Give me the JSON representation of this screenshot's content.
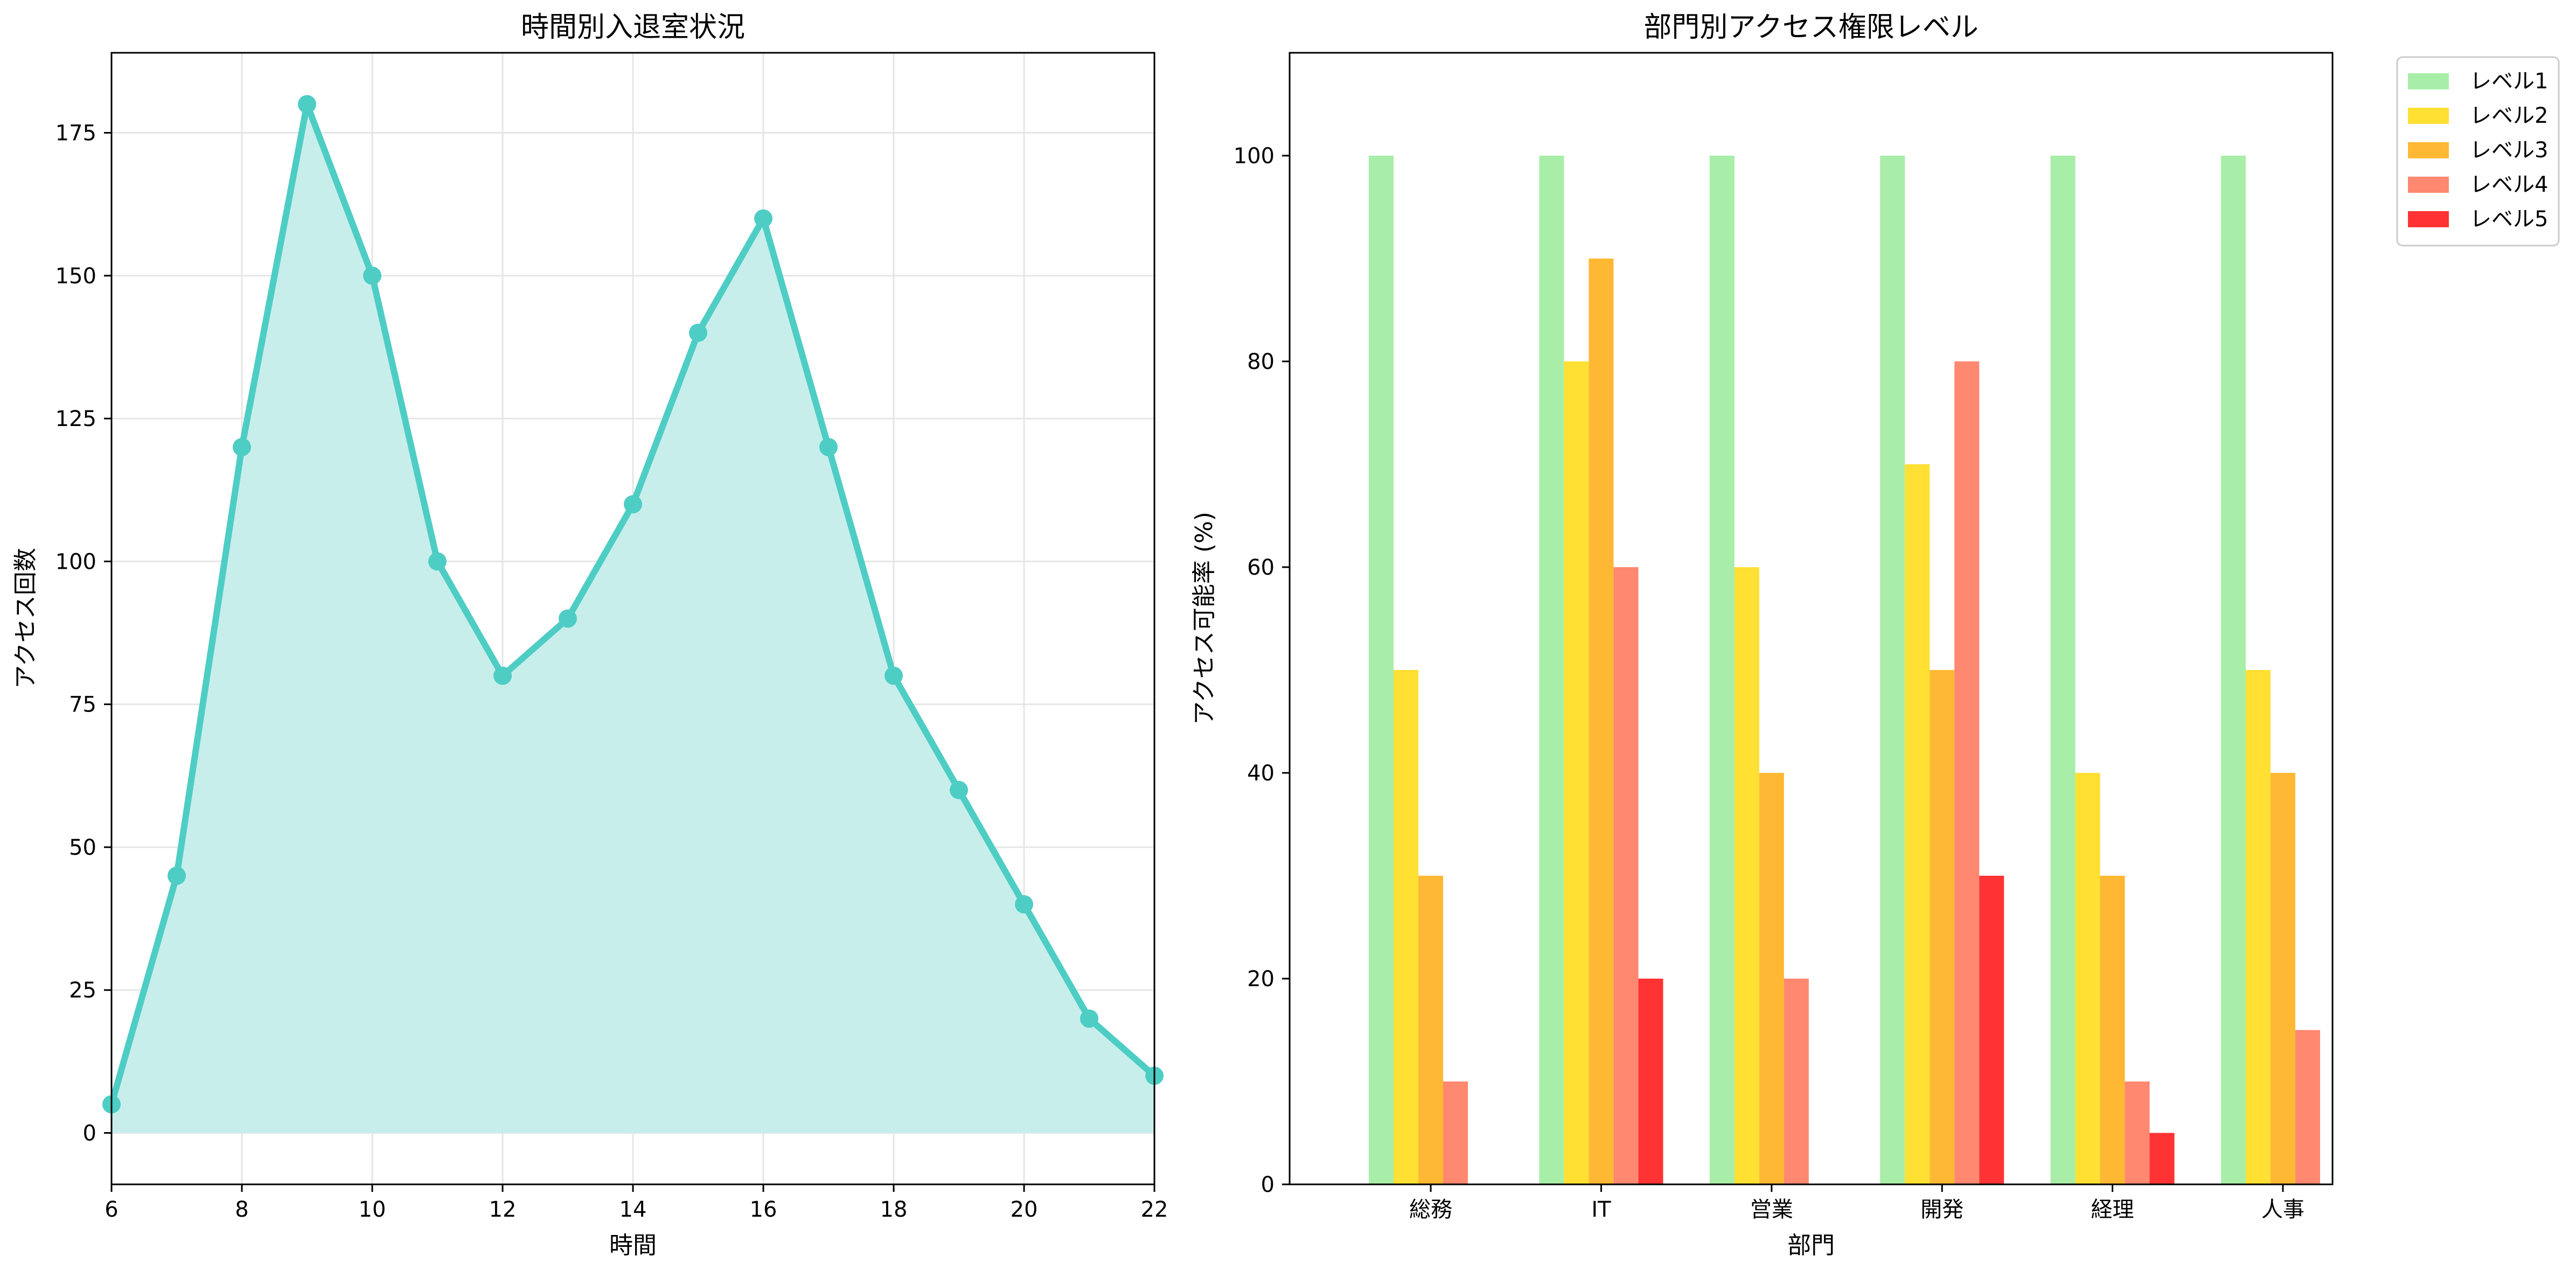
{
  "chart_data": [
    {
      "type": "area",
      "title": "時間別入退室状況",
      "xlabel": "時間",
      "ylabel": "アクセス回数",
      "xlim": [
        6,
        22
      ],
      "ylim": [
        -9,
        189
      ],
      "xticks": [
        6,
        8,
        10,
        12,
        14,
        16,
        18,
        20,
        22
      ],
      "yticks": [
        0,
        25,
        50,
        75,
        100,
        125,
        150,
        175
      ],
      "grid": true,
      "x": [
        6,
        7,
        8,
        9,
        10,
        11,
        12,
        13,
        14,
        15,
        16,
        17,
        18,
        19,
        20,
        21,
        22
      ],
      "values": [
        5,
        45,
        120,
        180,
        150,
        100,
        80,
        90,
        110,
        140,
        160,
        120,
        80,
        60,
        40,
        20,
        10
      ],
      "color": "#4ECDC4",
      "fill_color": "#C8EEEC"
    },
    {
      "type": "bar",
      "title": "部門別アクセス権限レベル",
      "xlabel": "部門",
      "ylabel": "アクセス可能率 (%)",
      "ylim": [
        0,
        110
      ],
      "yticks": [
        0,
        20,
        40,
        60,
        80,
        100
      ],
      "grid": false,
      "legend_position": "outside-top-right",
      "categories": [
        "総務",
        "IT",
        "営業",
        "開発",
        "経理",
        "人事"
      ],
      "series": [
        {
          "name": "レベル1",
          "color": "#A8EEA8",
          "values": [
            100,
            100,
            100,
            100,
            100,
            100
          ]
        },
        {
          "name": "レベル2",
          "color": "#FFE033",
          "values": [
            50,
            80,
            60,
            70,
            40,
            50
          ]
        },
        {
          "name": "レベル3",
          "color": "#FFB833",
          "values": [
            30,
            90,
            40,
            50,
            30,
            40
          ]
        },
        {
          "name": "レベル4",
          "color": "#FF8870",
          "values": [
            10,
            60,
            20,
            80,
            10,
            15
          ]
        },
        {
          "name": "レベル5",
          "color": "#FF3333",
          "values": [
            0,
            20,
            0,
            30,
            5,
            0
          ]
        }
      ]
    }
  ]
}
